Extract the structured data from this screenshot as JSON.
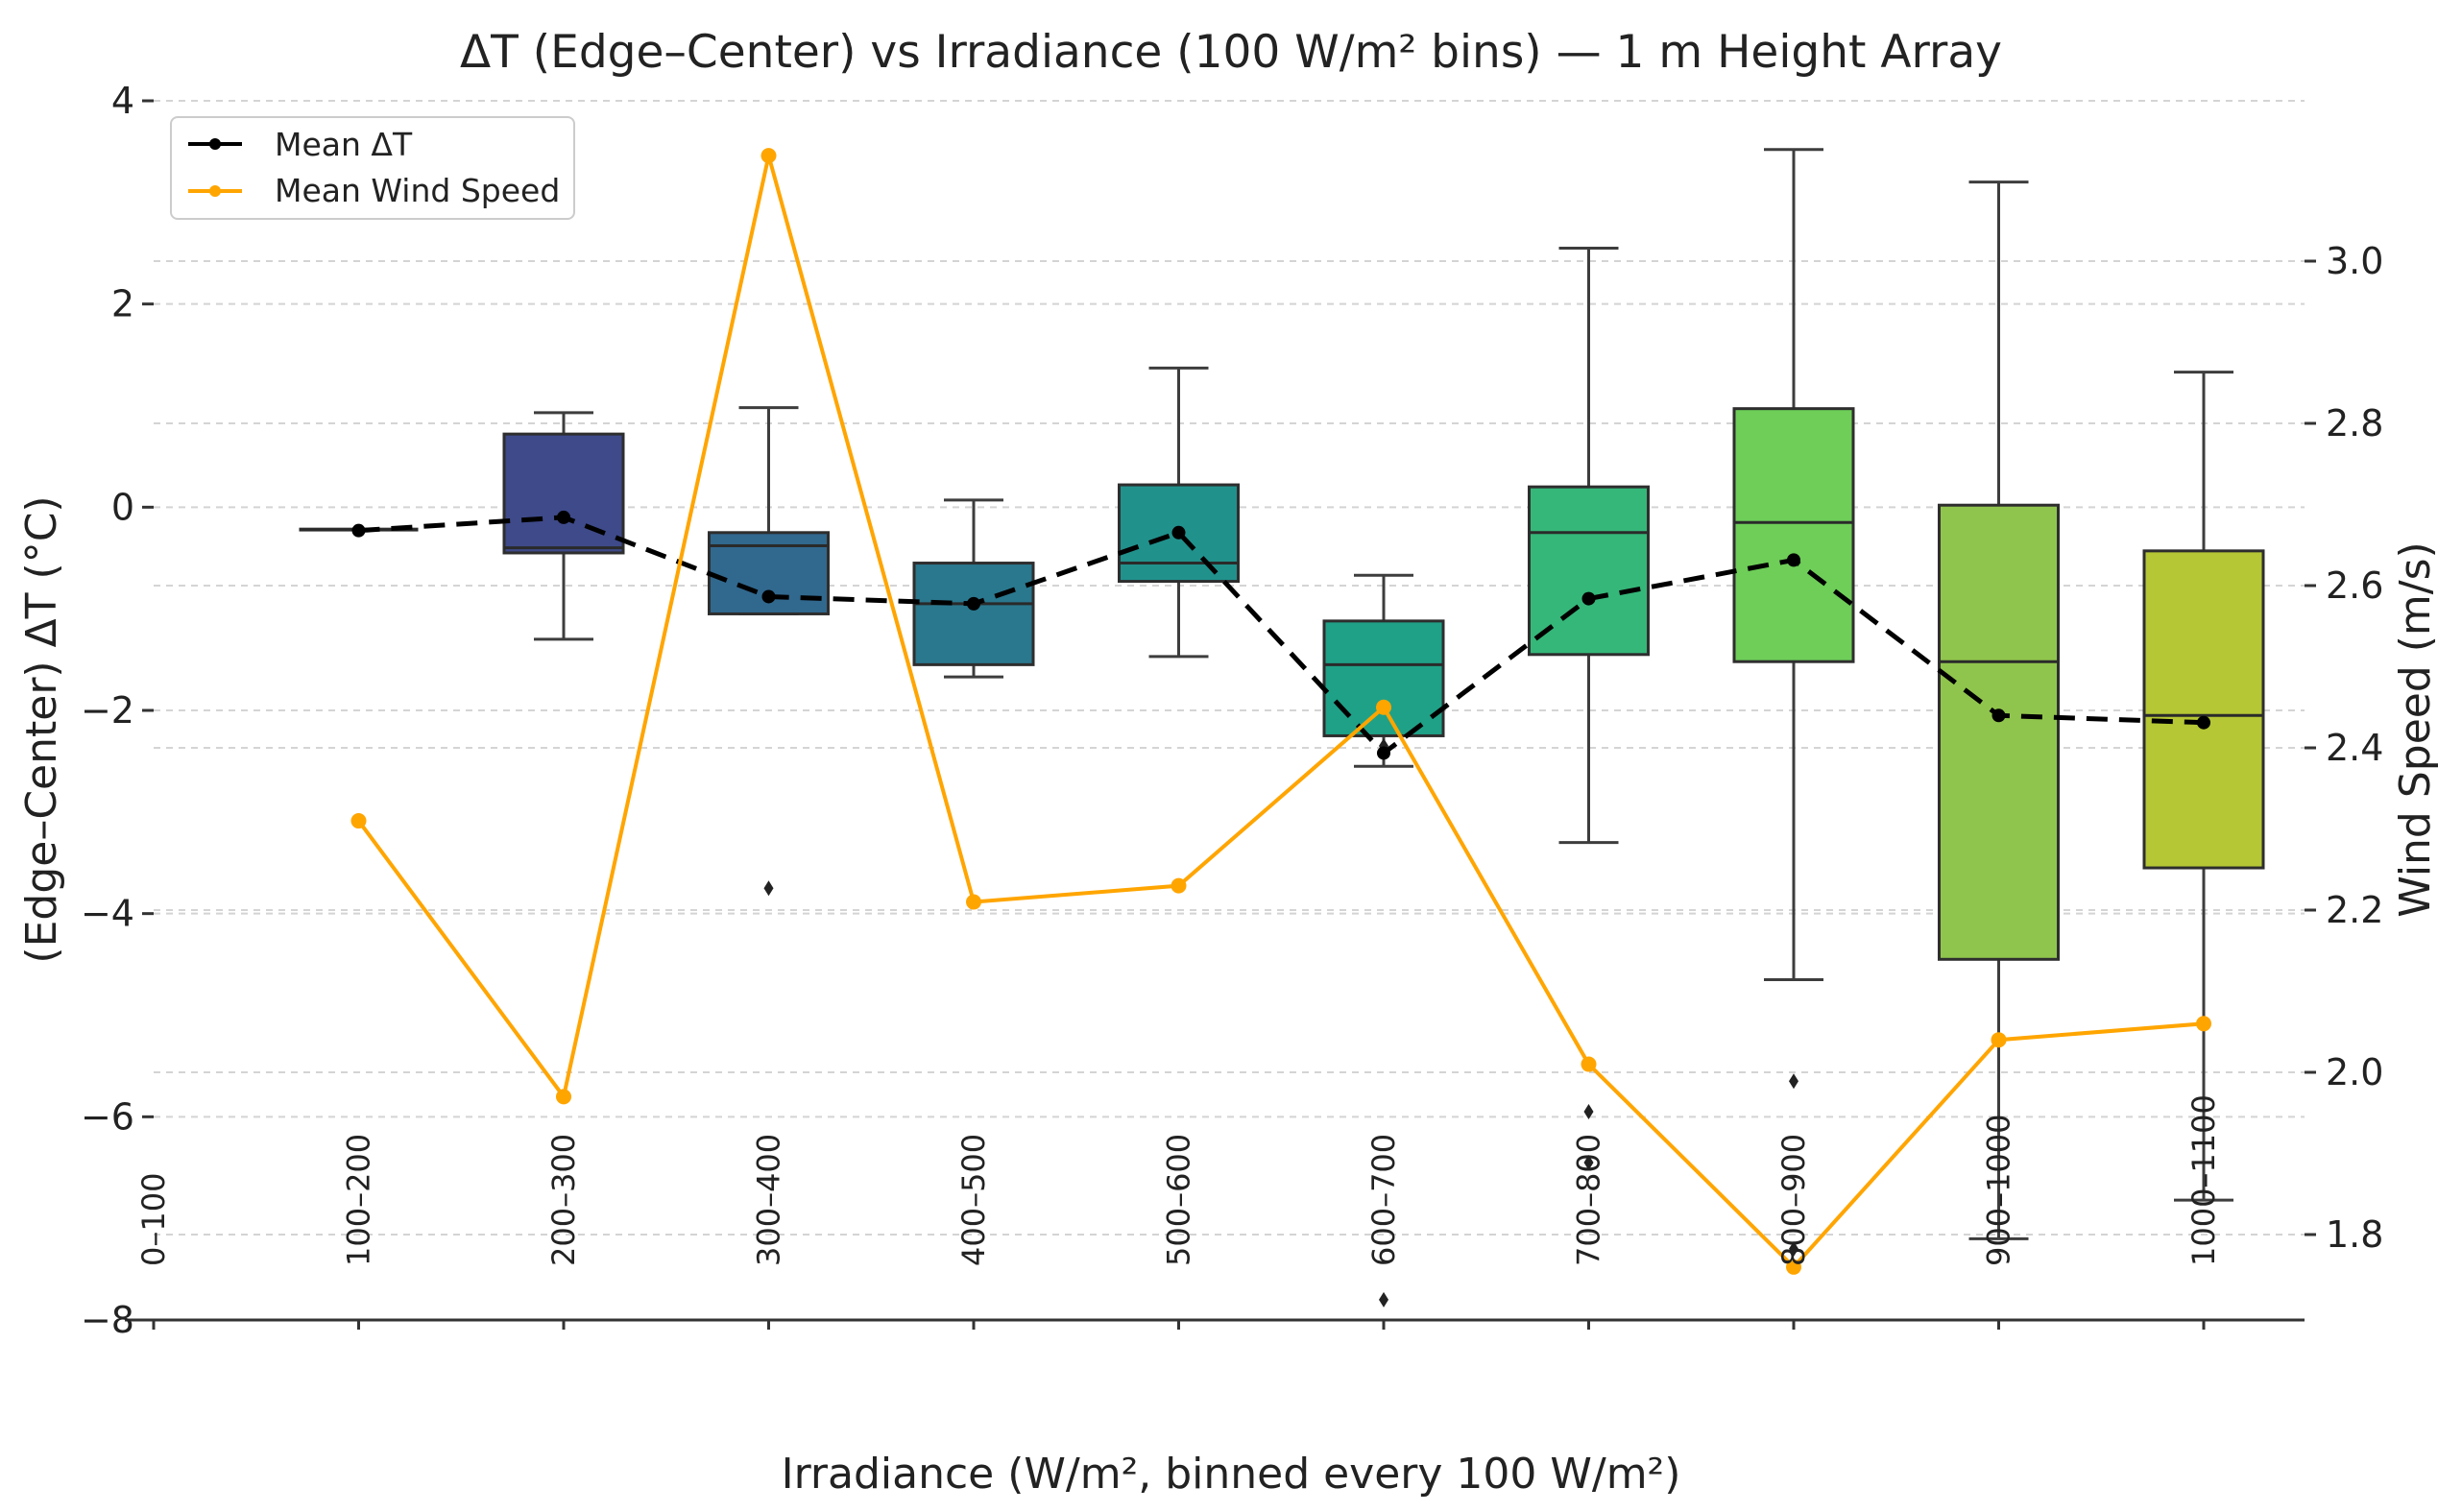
{
  "chart_data": {
    "type": "box",
    "title": "ΔT (Edge–Center) vs Irradiance (100 W/m² bins) — 1 m Height Array",
    "xlabel": "Irradiance (W/m², binned every 100 W/m²)",
    "ylabel": "(Edge–Center) ΔT (°C)",
    "y2label": "Wind Speed (m/s)",
    "ylim": [
      -8,
      4
    ],
    "y2lim": [
      1.7,
      3.2
    ],
    "yticks": [
      4,
      2,
      0,
      -2,
      -4,
      -6,
      -8
    ],
    "ytick_labels": [
      "4",
      "2",
      "0",
      "−2",
      "−4",
      "−6",
      "−8"
    ],
    "y2ticks": [
      3.0,
      2.8,
      2.6,
      2.4,
      2.2,
      2.0,
      1.8
    ],
    "y2tick_labels": [
      "3.0",
      "2.8",
      "2.6",
      "2.4",
      "2.2",
      "2.0",
      "1.8"
    ],
    "categories": [
      "0–100",
      "100–200",
      "200–300",
      "300–400",
      "400–500",
      "500–600",
      "600–700",
      "700–800",
      "800–900",
      "900–1000",
      "1000–1100"
    ],
    "boxes": [
      null,
      {
        "min": -0.22,
        "q1": -0.22,
        "median": -0.22,
        "q3": -0.22,
        "max": -0.22,
        "color": "#482878",
        "outliers": []
      },
      {
        "min": -1.3,
        "q1": -0.45,
        "median": -0.4,
        "q3": 0.72,
        "max": 0.93,
        "color": "#3e4a89",
        "outliers": []
      },
      {
        "min": -1.05,
        "q1": -1.05,
        "median": -0.38,
        "q3": -0.25,
        "max": 0.98,
        "color": "#31688e",
        "outliers": [
          -3.75
        ]
      },
      {
        "min": -1.67,
        "q1": -1.55,
        "median": -0.95,
        "q3": -0.55,
        "max": 0.07,
        "color": "#2a788e",
        "outliers": []
      },
      {
        "min": -1.47,
        "q1": -0.73,
        "median": -0.55,
        "q3": 0.22,
        "max": 1.37,
        "color": "#21918c",
        "outliers": []
      },
      {
        "min": -2.55,
        "q1": -2.25,
        "median": -1.55,
        "q3": -1.12,
        "max": -0.67,
        "color": "#1fa187",
        "outliers": [
          -2.35,
          -7.8
        ]
      },
      {
        "min": -3.3,
        "q1": -1.45,
        "median": -0.25,
        "q3": 0.2,
        "max": 2.55,
        "color": "#35b779",
        "outliers": [
          -5.95,
          -6.45
        ]
      },
      {
        "min": -4.65,
        "q1": -1.52,
        "median": -0.15,
        "q3": 0.97,
        "max": 3.52,
        "color": "#6ece58",
        "outliers": [
          -5.65,
          -7.3
        ]
      },
      {
        "min": -7.2,
        "q1": -4.45,
        "median": -1.52,
        "q3": 0.02,
        "max": 3.2,
        "color": "#90c54d",
        "outliers": []
      },
      {
        "min": -6.82,
        "q1": -3.55,
        "median": -2.05,
        "q3": -0.43,
        "max": 1.33,
        "color": "#b5c734",
        "outliers": []
      }
    ],
    "series": [
      {
        "name": "Mean ΔT",
        "axis": "left",
        "color": "#000000",
        "style": "dashed",
        "values": [
          null,
          -0.23,
          -0.1,
          -0.88,
          -0.95,
          -0.25,
          -2.42,
          -0.9,
          -0.52,
          -2.05,
          -2.12
        ]
      },
      {
        "name": "Mean Wind Speed",
        "axis": "right",
        "color": "#ffa500",
        "style": "solid",
        "values": [
          null,
          2.31,
          1.97,
          3.13,
          2.21,
          2.23,
          2.45,
          2.01,
          1.76,
          2.04,
          2.06
        ]
      }
    ],
    "legend": {
      "position": "top-left",
      "entries": [
        "Mean ΔT",
        "Mean Wind Speed"
      ]
    },
    "grid": "horizontal dashed",
    "colors": {
      "mean_dt": "#000000",
      "wind": "#ffa500"
    }
  }
}
